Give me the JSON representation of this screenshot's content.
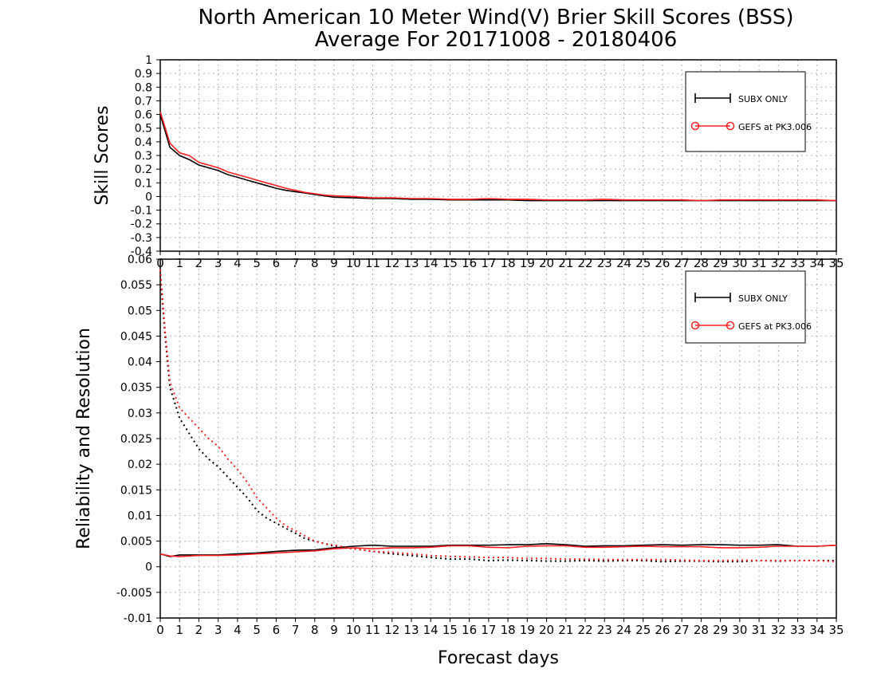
{
  "title": {
    "line1": "North American 10 Meter Wind(V) Brier Skill Scores (BSS)",
    "line2": "Average For 20171008 - 20180406"
  },
  "xlabel": "Forecast days",
  "colors": {
    "black_series": "#000000",
    "red_series": "#ff2020",
    "grid": "#b0b0b0"
  },
  "chart_data": [
    {
      "type": "line",
      "panel": "top",
      "ylabel": "Skill Scores",
      "xlim": [
        0,
        35
      ],
      "ylim": [
        -0.4,
        1.0
      ],
      "xticks": [
        0,
        1,
        2,
        3,
        4,
        5,
        6,
        7,
        8,
        9,
        10,
        11,
        12,
        13,
        14,
        15,
        16,
        17,
        18,
        19,
        20,
        21,
        22,
        23,
        24,
        25,
        26,
        27,
        28,
        29,
        30,
        31,
        32,
        33,
        34,
        35
      ],
      "yticks": [
        -0.4,
        -0.3,
        -0.2,
        -0.1,
        0,
        0.1,
        0.2,
        0.3,
        0.4,
        0.5,
        0.6,
        0.7,
        0.8,
        0.9,
        1
      ],
      "ytick_labels": [
        "-0.4",
        "-0.3",
        "-0.2",
        "-0.1",
        "0",
        "0.1",
        "0.2",
        "0.3",
        "0.4",
        "0.5",
        "0.6",
        "0.7",
        "0.8",
        "0.9",
        "1"
      ],
      "grid": true,
      "legend": {
        "position": "top-right",
        "entries": [
          "SUBX ONLY",
          "GEFS at PK3.006"
        ]
      },
      "series": [
        {
          "name": "SUBX ONLY",
          "color": "#000000",
          "style": "solid",
          "x": [
            0,
            0.5,
            1,
            1.5,
            2,
            2.5,
            3,
            3.5,
            4,
            4.5,
            5,
            5.5,
            6,
            6.5,
            7,
            7.5,
            8,
            8.5,
            9,
            10,
            11,
            12,
            13,
            14,
            15,
            16,
            17,
            18,
            19,
            20,
            21,
            22,
            23,
            24,
            25,
            26,
            27,
            28,
            29,
            30,
            31,
            32,
            33,
            34,
            35
          ],
          "values": [
            0.6,
            0.36,
            0.3,
            0.27,
            0.23,
            0.21,
            0.19,
            0.16,
            0.14,
            0.12,
            0.1,
            0.08,
            0.06,
            0.045,
            0.035,
            0.025,
            0.015,
            0.005,
            -0.005,
            -0.01,
            -0.015,
            -0.015,
            -0.02,
            -0.02,
            -0.025,
            -0.025,
            -0.025,
            -0.025,
            -0.03,
            -0.03,
            -0.03,
            -0.03,
            -0.03,
            -0.03,
            -0.03,
            -0.03,
            -0.03,
            -0.03,
            -0.03,
            -0.03,
            -0.03,
            -0.03,
            -0.03,
            -0.03,
            -0.03
          ]
        },
        {
          "name": "GEFS at PK3.006",
          "color": "#ff2020",
          "style": "solid",
          "x": [
            0,
            0.5,
            1,
            1.5,
            2,
            2.5,
            3,
            3.5,
            4,
            4.5,
            5,
            5.5,
            6,
            6.5,
            7,
            7.5,
            8,
            8.5,
            9,
            10,
            11,
            12,
            13,
            14,
            15,
            16,
            17,
            18,
            19,
            20,
            21,
            22,
            23,
            24,
            25,
            26,
            27,
            28,
            29,
            30,
            31,
            32,
            33,
            34,
            35
          ],
          "values": [
            0.62,
            0.39,
            0.32,
            0.3,
            0.25,
            0.23,
            0.21,
            0.18,
            0.16,
            0.14,
            0.12,
            0.1,
            0.08,
            0.06,
            0.045,
            0.03,
            0.02,
            0.01,
            0.005,
            0,
            -0.01,
            -0.01,
            -0.015,
            -0.015,
            -0.02,
            -0.02,
            -0.015,
            -0.02,
            -0.02,
            -0.025,
            -0.025,
            -0.025,
            -0.02,
            -0.025,
            -0.025,
            -0.025,
            -0.025,
            -0.03,
            -0.025,
            -0.025,
            -0.025,
            -0.025,
            -0.025,
            -0.025,
            -0.03
          ]
        }
      ]
    },
    {
      "type": "line",
      "panel": "bottom",
      "ylabel": "Reliability and Resolution",
      "xlim": [
        0,
        35
      ],
      "ylim": [
        -0.01,
        0.06
      ],
      "xticks": [
        0,
        1,
        2,
        3,
        4,
        5,
        6,
        7,
        8,
        9,
        10,
        11,
        12,
        13,
        14,
        15,
        16,
        17,
        18,
        19,
        20,
        21,
        22,
        23,
        24,
        25,
        26,
        27,
        28,
        29,
        30,
        31,
        32,
        33,
        34,
        35
      ],
      "yticks": [
        -0.01,
        -0.005,
        0,
        0.005,
        0.01,
        0.015,
        0.02,
        0.025,
        0.03,
        0.035,
        0.04,
        0.045,
        0.05,
        0.055,
        0.06
      ],
      "ytick_labels": [
        "-0.01",
        "-0.005",
        "0",
        "0.005",
        "0.01",
        "0.015",
        "0.02",
        "0.025",
        "0.03",
        "0.035",
        "0.04",
        "0.045",
        "0.05",
        "0.055",
        "0.06"
      ],
      "grid": true,
      "legend": {
        "position": "top-right",
        "entries": [
          "SUBX ONLY",
          "GEFS at PK3.006"
        ]
      },
      "series": [
        {
          "name": "SUBX ONLY",
          "color": "#000000",
          "style": "solid",
          "x": [
            0,
            0.5,
            1,
            2,
            3,
            4,
            5,
            6,
            7,
            8,
            9,
            10,
            11,
            12,
            13,
            14,
            15,
            16,
            17,
            18,
            19,
            20,
            21,
            22,
            23,
            24,
            25,
            26,
            27,
            28,
            29,
            30,
            31,
            32,
            33,
            34,
            35
          ],
          "values": [
            0.0025,
            0.002,
            0.0023,
            0.0023,
            0.0023,
            0.0025,
            0.0027,
            0.003,
            0.0032,
            0.0033,
            0.0037,
            0.004,
            0.0042,
            0.004,
            0.004,
            0.004,
            0.0042,
            0.0042,
            0.0042,
            0.0043,
            0.0043,
            0.0045,
            0.0043,
            0.004,
            0.0041,
            0.0041,
            0.0042,
            0.0043,
            0.0042,
            0.0043,
            0.0043,
            0.0042,
            0.0042,
            0.0043,
            0.004,
            0.004,
            0.0042
          ]
        },
        {
          "name": "GEFS at PK3.006",
          "color": "#ff2020",
          "style": "solid",
          "x": [
            0,
            0.5,
            1,
            2,
            3,
            4,
            5,
            6,
            7,
            8,
            9,
            10,
            11,
            12,
            13,
            14,
            15,
            16,
            17,
            18,
            19,
            20,
            21,
            22,
            23,
            24,
            25,
            26,
            27,
            28,
            29,
            30,
            31,
            32,
            33,
            34,
            35
          ],
          "values": [
            0.0025,
            0.0021,
            0.002,
            0.0022,
            0.0022,
            0.0023,
            0.0025,
            0.0027,
            0.0029,
            0.0031,
            0.0035,
            0.0037,
            0.0035,
            0.0037,
            0.0037,
            0.0038,
            0.0041,
            0.0041,
            0.0038,
            0.0037,
            0.004,
            0.0041,
            0.0041,
            0.0038,
            0.0038,
            0.0039,
            0.004,
            0.0039,
            0.0039,
            0.0039,
            0.0037,
            0.0037,
            0.0038,
            0.004,
            0.004,
            0.004,
            0.0042
          ]
        },
        {
          "name": "",
          "color": "#000000",
          "style": "dotted",
          "x": [
            0,
            0.25,
            0.5,
            1,
            1.5,
            2,
            2.5,
            3,
            3.5,
            4,
            4.5,
            5,
            5.5,
            6,
            6.5,
            7,
            7.5,
            8,
            8.5,
            9,
            10,
            11,
            12,
            13,
            14,
            15,
            16,
            17,
            18,
            19,
            20,
            21,
            22,
            23,
            24,
            25,
            26,
            27,
            28,
            29,
            30,
            31,
            32,
            33,
            34,
            35
          ],
          "values": [
            0.057,
            0.045,
            0.035,
            0.029,
            0.026,
            0.023,
            0.021,
            0.0195,
            0.0175,
            0.0155,
            0.0135,
            0.011,
            0.0095,
            0.0085,
            0.0075,
            0.0065,
            0.0055,
            0.005,
            0.0045,
            0.004,
            0.0035,
            0.003,
            0.0025,
            0.0022,
            0.0018,
            0.0015,
            0.0015,
            0.0012,
            0.0013,
            0.0012,
            0.0011,
            0.0011,
            0.0012,
            0.0011,
            0.0012,
            0.0012,
            0.001,
            0.0011,
            0.0011,
            0.001,
            0.001,
            0.0012,
            0.0011,
            0.0012,
            0.0012,
            0.0012
          ]
        },
        {
          "name": "",
          "color": "#ff2020",
          "style": "dotted",
          "x": [
            0,
            0.25,
            0.5,
            1,
            1.5,
            2,
            2.5,
            3,
            3.5,
            4,
            4.5,
            5,
            5.5,
            6,
            6.5,
            7,
            7.5,
            8,
            8.5,
            9,
            10,
            11,
            12,
            13,
            14,
            15,
            16,
            17,
            18,
            19,
            20,
            21,
            22,
            23,
            24,
            25,
            26,
            27,
            28,
            29,
            30,
            31,
            32,
            33,
            34,
            35
          ],
          "values": [
            0.058,
            0.046,
            0.036,
            0.031,
            0.029,
            0.027,
            0.025,
            0.0235,
            0.021,
            0.019,
            0.0165,
            0.0135,
            0.0115,
            0.0095,
            0.008,
            0.007,
            0.006,
            0.005,
            0.0045,
            0.0042,
            0.0035,
            0.003,
            0.0028,
            0.0025,
            0.0022,
            0.002,
            0.0019,
            0.0018,
            0.0018,
            0.0016,
            0.0016,
            0.0015,
            0.0015,
            0.0014,
            0.0014,
            0.0014,
            0.0014,
            0.0013,
            0.0012,
            0.0012,
            0.0013,
            0.0012,
            0.0012,
            0.0012,
            0.0012,
            0.001
          ]
        }
      ]
    }
  ]
}
